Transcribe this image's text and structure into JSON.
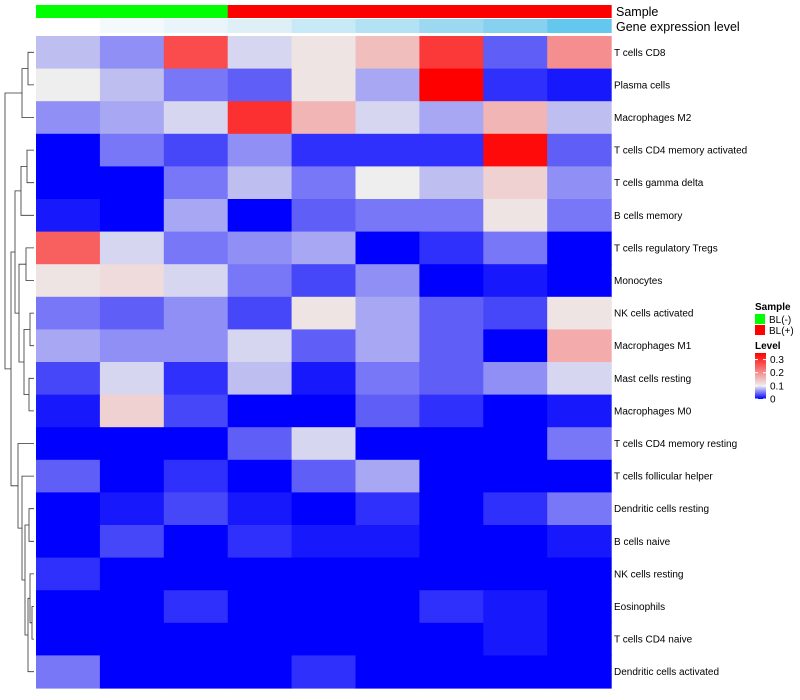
{
  "chart_data": {
    "type": "heatmap",
    "annotation_titles": {
      "sample": "Sample",
      "gene": "Gene expression level"
    },
    "sample_colors": {
      "BL(-)": "#00ff00",
      "BL(+)": "#ff0000"
    },
    "column_samples": [
      "BL(-)",
      "BL(-)",
      "BL(-)",
      "BL(+)",
      "BL(+)",
      "BL(+)",
      "BL(+)",
      "BL(+)",
      "BL(+)"
    ],
    "gene_colors": [
      "#ffffff",
      "#f4f9fc",
      "#e9f5fa",
      "#deeff8",
      "#c8eaf6",
      "#b2e2f3",
      "#9cd9f1",
      "#86d1ef",
      "#64c7ee"
    ],
    "rows": [
      "T cells CD8",
      "Plasma cells",
      "Macrophages M2",
      "T cells CD4 memory activated",
      "T cells gamma delta",
      "B cells memory",
      "T cells regulatory  Tregs",
      "Monocytes",
      "NK cells activated",
      "Macrophages M1",
      "Mast cells resting",
      "Macrophages M0",
      "T cells CD4 memory resting",
      "T cells follicular helper",
      "Dendritic cells resting",
      "B cells naive",
      "NK cells resting",
      "Eosinophils",
      "T cells CD4 naive",
      "Dendritic cells activated"
    ],
    "values": [
      [
        0.08,
        0.06,
        0.27,
        0.09,
        0.11,
        0.15,
        0.29,
        0.04,
        0.2
      ],
      [
        0.1,
        0.08,
        0.05,
        0.04,
        0.11,
        0.07,
        0.35,
        0.02,
        0.01
      ],
      [
        0.06,
        0.07,
        0.09,
        0.3,
        0.16,
        0.09,
        0.07,
        0.16,
        0.08
      ],
      [
        0.0,
        0.05,
        0.03,
        0.06,
        0.02,
        0.02,
        0.02,
        0.34,
        0.04
      ],
      [
        0.0,
        0.0,
        0.05,
        0.08,
        0.05,
        0.1,
        0.08,
        0.13,
        0.06
      ],
      [
        0.01,
        0.0,
        0.07,
        0.0,
        0.04,
        0.05,
        0.05,
        0.11,
        0.05
      ],
      [
        0.25,
        0.09,
        0.05,
        0.06,
        0.07,
        0.0,
        0.02,
        0.05,
        0.0
      ],
      [
        0.11,
        0.12,
        0.09,
        0.05,
        0.03,
        0.06,
        0.0,
        0.01,
        0.0
      ],
      [
        0.05,
        0.04,
        0.06,
        0.03,
        0.11,
        0.07,
        0.04,
        0.03,
        0.11
      ],
      [
        0.07,
        0.06,
        0.06,
        0.09,
        0.04,
        0.07,
        0.04,
        0.0,
        0.17
      ],
      [
        0.03,
        0.09,
        0.02,
        0.08,
        0.01,
        0.05,
        0.04,
        0.06,
        0.09
      ],
      [
        0.01,
        0.13,
        0.03,
        0.0,
        0.0,
        0.04,
        0.02,
        0.0,
        0.01
      ],
      [
        0.0,
        0.0,
        0.0,
        0.04,
        0.09,
        0.0,
        0.0,
        0.0,
        0.05
      ],
      [
        0.04,
        0.0,
        0.02,
        0.0,
        0.04,
        0.07,
        0.0,
        0.0,
        0.0
      ],
      [
        0.0,
        0.01,
        0.03,
        0.01,
        0.0,
        0.02,
        0.0,
        0.02,
        0.05
      ],
      [
        0.0,
        0.03,
        0.0,
        0.02,
        0.01,
        0.01,
        0.0,
        0.0,
        0.01
      ],
      [
        0.02,
        0.0,
        0.0,
        0.0,
        0.0,
        0.0,
        0.0,
        0.0,
        0.0
      ],
      [
        0.0,
        0.0,
        0.02,
        0.0,
        0.0,
        0.0,
        0.02,
        0.01,
        0.0
      ],
      [
        0.0,
        0.0,
        0.0,
        0.0,
        0.0,
        0.0,
        0.0,
        0.01,
        0.0
      ],
      [
        0.05,
        0.0,
        0.0,
        0.0,
        0.02,
        0.0,
        0.0,
        0.0,
        0.0
      ]
    ],
    "color_scale": {
      "min": 0,
      "mid": 0.1,
      "max": 0.35,
      "low": "#0000ff",
      "midcolor": "#eeeeee",
      "high": "#ff0000"
    },
    "legend": {
      "sample_title": "Sample",
      "sample_entries": [
        "BL(-)",
        "BL(+)"
      ],
      "level_title": "Level",
      "level_ticks": [
        "0.3",
        "0.2",
        "0.1",
        "0"
      ],
      "level_tick_values": [
        0.3,
        0.2,
        0.1,
        0
      ]
    },
    "row_dendrogram": true,
    "placement": {
      "legend": "right",
      "dendrogram": "left",
      "row_labels": "right"
    }
  }
}
